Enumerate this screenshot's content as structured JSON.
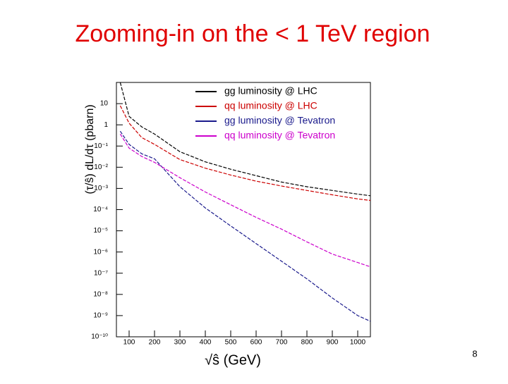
{
  "chart_data": {
    "type": "line",
    "title": "Zooming-in on the < 1 TeV region",
    "page_number": "8",
    "x_label": "√ŝ (GeV)",
    "y_label": "(τ/ŝ) dL/dτ (pbarn)",
    "y_scale": "log",
    "x": [
      65,
      100,
      150,
      200,
      300,
      400,
      500,
      600,
      700,
      800,
      900,
      1000,
      1050
    ],
    "series": [
      {
        "name": "gg luminosity @ LHC",
        "color": "#000000",
        "values": [
          100,
          2.5,
          0.8,
          0.37,
          0.054,
          0.018,
          0.008,
          0.004,
          0.002,
          0.0012,
          0.0008,
          0.00054,
          0.00045
        ]
      },
      {
        "name": "qq luminosity @ LHC",
        "color": "#cc0000",
        "values": [
          8,
          1.2,
          0.25,
          0.12,
          0.023,
          0.009,
          0.0043,
          0.0022,
          0.0013,
          0.0008,
          0.0005,
          0.00032,
          0.00027
        ]
      },
      {
        "name": "gg luminosity @ Tevatron",
        "color": "#1a1a8c",
        "values": [
          0.5,
          0.12,
          0.043,
          0.025,
          0.0012,
          0.00012,
          1.7e-05,
          2.5e-06,
          3.7e-07,
          5.4e-08,
          6.8e-09,
          1e-09,
          5.4e-10
        ]
      },
      {
        "name": "qq luminosity @ Tevatron",
        "color": "#cc00cc",
        "values": [
          0.37,
          0.08,
          0.032,
          0.017,
          0.0032,
          0.00068,
          0.00017,
          4.3e-05,
          1.2e-05,
          3e-06,
          8e-07,
          3.2e-07,
          2e-07
        ]
      }
    ],
    "xlim": [
      50,
      1050
    ],
    "xticks": [
      100,
      200,
      300,
      400,
      500,
      600,
      700,
      800,
      900,
      1000
    ],
    "ylim": [
      1e-10,
      100
    ],
    "yticks": [
      10,
      1,
      {
        "value": 0.1,
        "label": "10⁻¹"
      },
      {
        "value": 0.01,
        "label": "10⁻²"
      },
      {
        "value": 0.001,
        "label": "10⁻³"
      },
      {
        "value": 0.0001,
        "label": "10⁻⁴"
      },
      {
        "value": 1e-05,
        "label": "10⁻⁵"
      },
      {
        "value": 1e-06,
        "label": "10⁻⁶"
      },
      {
        "value": 1e-07,
        "label": "10⁻⁷"
      },
      {
        "value": 1e-08,
        "label": "10⁻⁸"
      },
      {
        "value": 1e-09,
        "label": "10⁻⁹"
      },
      {
        "value": 1e-10,
        "label": "10⁻¹⁰"
      }
    ]
  }
}
